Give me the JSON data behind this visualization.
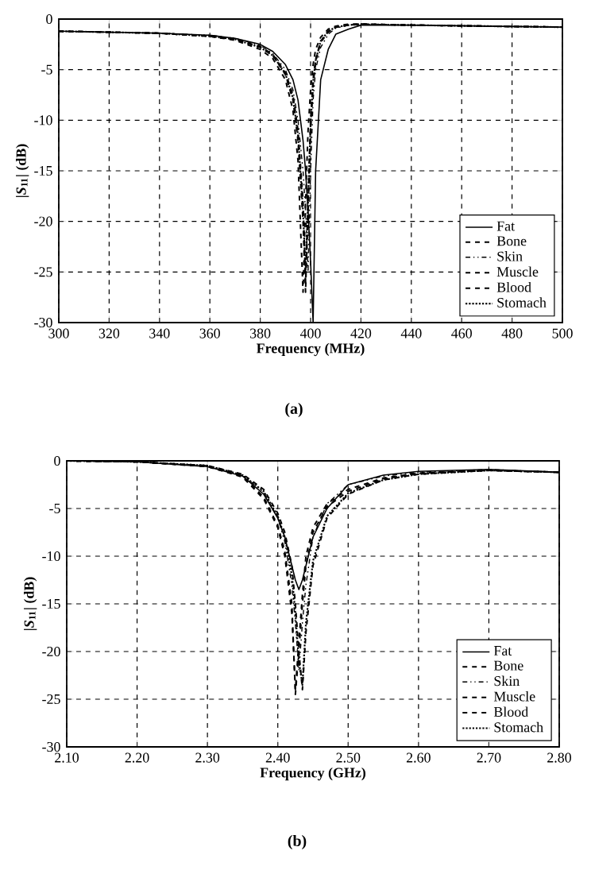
{
  "chart_data": [
    {
      "type": "line",
      "xlabel": "Frequency (MHz)",
      "ylabel": "|*S*$_{11}$| (dB)",
      "annotations": [
        "(a)"
      ],
      "grid": true,
      "legend": "bottom right",
      "marker": "none",
      "xlim": [
        300,
        500
      ],
      "ylim": [
        -30,
        0
      ],
      "xticks": [
        300,
        320,
        340,
        360,
        380,
        400,
        420,
        440,
        460,
        480,
        500
      ],
      "yticks": [
        0,
        -5,
        -10,
        -15,
        -20,
        -25,
        -30
      ],
      "x": [
        300,
        340,
        360,
        370,
        380,
        385,
        390,
        393,
        395,
        397,
        398,
        399,
        400,
        401,
        402,
        404,
        407,
        410,
        415,
        420,
        440,
        470,
        500
      ],
      "series": [
        {
          "name": "Fat",
          "color": "#000000",
          "line_style": "solid",
          "values": [
            -1.2,
            -1.4,
            -1.6,
            -1.9,
            -2.5,
            -3.2,
            -4.5,
            -6,
            -8,
            -12,
            -15,
            -19,
            -24,
            -30,
            -15,
            -6,
            -3,
            -1.5,
            -1,
            -0.6,
            -0.6,
            -0.7,
            -0.8
          ]
        },
        {
          "name": "Bone",
          "color": "#000000",
          "line_style": "dashed",
          "values": [
            -1.2,
            -1.4,
            -1.7,
            -2,
            -2.8,
            -3.6,
            -5.5,
            -8,
            -12,
            -20,
            -27,
            -18,
            -10,
            -6,
            -4,
            -2.2,
            -1.2,
            -0.8,
            -0.6,
            -0.5,
            -0.6,
            -0.7,
            -0.8
          ]
        },
        {
          "name": "Skin",
          "color": "#000000",
          "line_style": "dashdot",
          "values": [
            -1.2,
            -1.4,
            -1.6,
            -1.9,
            -2.6,
            -3.4,
            -5,
            -7,
            -10,
            -15,
            -19,
            -25,
            -15,
            -8,
            -5,
            -2.8,
            -1.5,
            -0.9,
            -0.6,
            -0.5,
            -0.6,
            -0.7,
            -0.8
          ]
        },
        {
          "name": "Muscle",
          "color": "#000000",
          "line_style": "dashed",
          "values": [
            -1.2,
            -1.4,
            -1.7,
            -2,
            -2.7,
            -3.5,
            -5.3,
            -7.5,
            -11,
            -18,
            -26,
            -19,
            -11,
            -6.5,
            -4.2,
            -2.3,
            -1.3,
            -0.8,
            -0.6,
            -0.5,
            -0.6,
            -0.7,
            -0.8
          ]
        },
        {
          "name": "Blood",
          "color": "#000000",
          "line_style": "dashed",
          "values": [
            -1.2,
            -1.4,
            -1.7,
            -2.1,
            -3,
            -3.9,
            -6,
            -9,
            -14,
            -27,
            -18,
            -11,
            -7,
            -4.5,
            -3,
            -1.8,
            -1,
            -0.7,
            -0.5,
            -0.5,
            -0.6,
            -0.7,
            -0.8
          ]
        },
        {
          "name": "Stomach",
          "color": "#000000",
          "line_style": "dotted",
          "values": [
            -1.2,
            -1.4,
            -1.7,
            -2,
            -2.8,
            -3.6,
            -5.4,
            -7.8,
            -11.5,
            -19,
            -25,
            -18,
            -10.5,
            -6.2,
            -4.1,
            -2.2,
            -1.2,
            -0.8,
            -0.6,
            -0.5,
            -0.6,
            -0.7,
            -0.8
          ]
        }
      ]
    },
    {
      "type": "line",
      "xlabel": "Frequency (GHz)",
      "ylabel": "|*S*$_{11}$| (dB)",
      "annotations": [
        "(b)"
      ],
      "grid": true,
      "legend": "bottom right",
      "marker": "none",
      "xlim": [
        2.1,
        2.8
      ],
      "ylim": [
        -30,
        0
      ],
      "xticks": [
        {
          "value": 2.1,
          "label": "2.10"
        },
        {
          "value": 2.2,
          "label": "2.20"
        },
        {
          "value": 2.3,
          "label": "2.30"
        },
        {
          "value": 2.4,
          "label": "2.40"
        },
        {
          "value": 2.5,
          "label": "2.50"
        },
        {
          "value": 2.6,
          "label": "2.60"
        },
        {
          "value": 2.7,
          "label": "2.70"
        },
        {
          "value": 2.8,
          "label": "2.80"
        }
      ],
      "yticks": [
        0,
        -5,
        -10,
        -15,
        -20,
        -25,
        -30
      ],
      "x": [
        2.1,
        2.2,
        2.3,
        2.35,
        2.38,
        2.4,
        2.41,
        2.42,
        2.425,
        2.43,
        2.435,
        2.44,
        2.45,
        2.47,
        2.5,
        2.55,
        2.6,
        2.7,
        2.8
      ],
      "series": [
        {
          "name": "Fat",
          "color": "#000000",
          "line_style": "solid",
          "values": [
            0,
            -0.1,
            -0.6,
            -1.6,
            -3.5,
            -6,
            -8,
            -11,
            -12.5,
            -13.5,
            -12.5,
            -11,
            -8,
            -5,
            -2.5,
            -1.5,
            -1.1,
            -0.9,
            -1.2
          ]
        },
        {
          "name": "Bone",
          "color": "#000000",
          "line_style": "dashed",
          "values": [
            0,
            -0.1,
            -0.5,
            -1.4,
            -3,
            -5.5,
            -7.5,
            -11,
            -15,
            -20,
            -24,
            -18,
            -11,
            -6,
            -3.5,
            -2,
            -1.4,
            -1,
            -1.2
          ]
        },
        {
          "name": "Skin",
          "color": "#000000",
          "line_style": "dashdot",
          "values": [
            0,
            -0.1,
            -0.5,
            -1.5,
            -3.3,
            -6,
            -8.5,
            -13,
            -17,
            -22,
            -17,
            -13,
            -8,
            -4.5,
            -2.5,
            -1.6,
            -1.2,
            -0.9,
            -1.2
          ]
        },
        {
          "name": "Muscle",
          "color": "#000000",
          "line_style": "dashed",
          "values": [
            0,
            -0.1,
            -0.6,
            -1.7,
            -4,
            -7,
            -10,
            -16,
            -24,
            -19,
            -14,
            -10,
            -7,
            -4.5,
            -3,
            -1.8,
            -1.3,
            -1,
            -1.2
          ]
        },
        {
          "name": "Blood",
          "color": "#000000",
          "line_style": "dashed",
          "values": [
            0,
            -0.1,
            -0.6,
            -1.6,
            -3.8,
            -6.8,
            -9.5,
            -15,
            -24.5,
            -20,
            -15,
            -11,
            -7.5,
            -4.8,
            -3.2,
            -1.9,
            -1.3,
            -1,
            -1.2
          ]
        },
        {
          "name": "Stomach",
          "color": "#000000",
          "line_style": "dotted",
          "values": [
            0,
            -0.1,
            -0.5,
            -1.5,
            -3.2,
            -5.8,
            -8,
            -12,
            -16,
            -21,
            -23.5,
            -17,
            -10.5,
            -5.8,
            -3.4,
            -2,
            -1.4,
            -1,
            -1.2
          ]
        }
      ]
    }
  ]
}
